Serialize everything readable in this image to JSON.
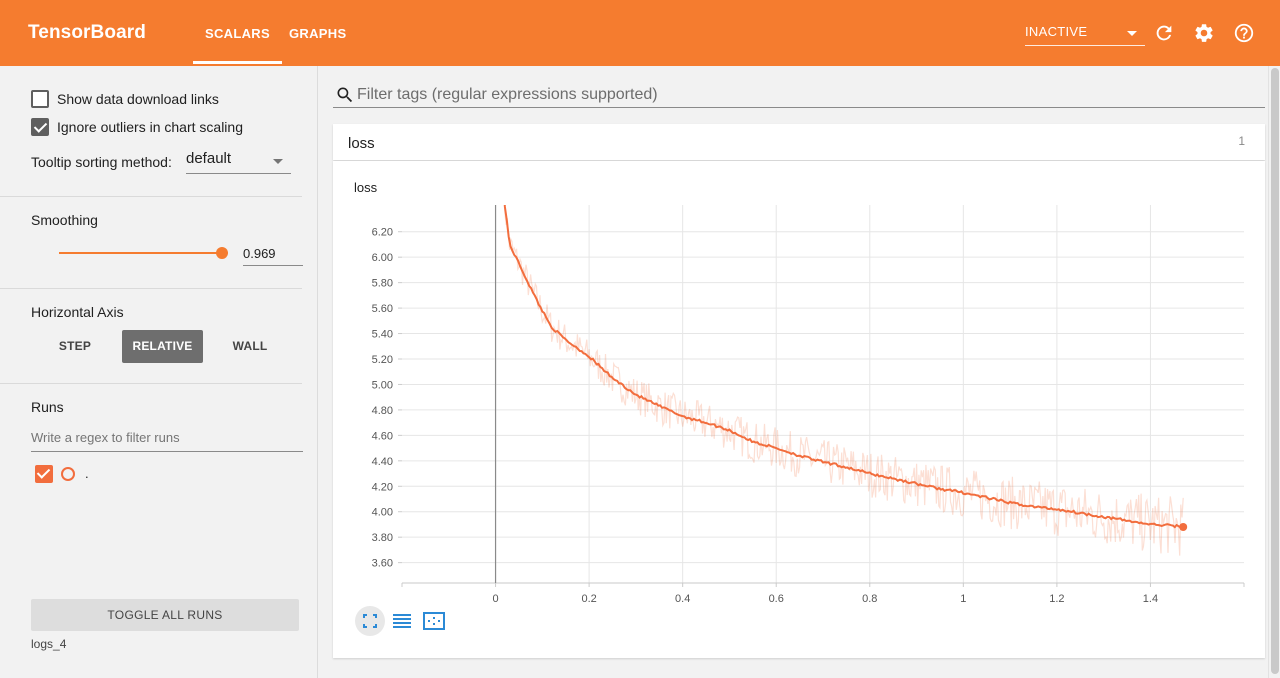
{
  "header": {
    "brand": "TensorBoard",
    "tabs": [
      {
        "label": "SCALARS"
      },
      {
        "label": "GRAPHS"
      }
    ],
    "run_select_value": "INACTIVE",
    "accent_color": "#f57c2f"
  },
  "sidebar": {
    "show_download_links": {
      "label": "Show data download links",
      "checked": false
    },
    "ignore_outliers": {
      "label": "Ignore outliers in chart scaling",
      "checked": true
    },
    "tooltip_sorting": {
      "label": "Tooltip sorting method:",
      "value": "default"
    },
    "smoothing": {
      "label": "Smoothing",
      "value": "0.969",
      "level": 0.969
    },
    "horizontal_axis": {
      "label": "Horizontal Axis",
      "options": [
        "STEP",
        "RELATIVE",
        "WALL"
      ],
      "selected": "RELATIVE"
    },
    "runs": {
      "label": "Runs",
      "filter_placeholder": "Write a regex to filter runs",
      "items": [
        {
          "name": ".",
          "checked": true,
          "color": "#f26d3d"
        }
      ]
    },
    "toggle_all_label": "TOGGLE ALL RUNS",
    "log_dir": "logs_4"
  },
  "main": {
    "tag_filter_placeholder": "Filter tags (regular expressions supported)",
    "category": {
      "name": "loss",
      "count": "1"
    }
  },
  "chart_data": {
    "type": "line",
    "title": "loss",
    "xlabel": "",
    "ylabel": "",
    "x_ticks": [
      "0",
      "0.2",
      "0.4",
      "0.6",
      "0.8",
      "1",
      "1.2",
      "1.4"
    ],
    "y_ticks": [
      "3.60",
      "3.80",
      "4.00",
      "4.20",
      "4.40",
      "4.60",
      "4.80",
      "5.00",
      "5.20",
      "5.40",
      "5.60",
      "5.80",
      "6.00",
      "6.20"
    ],
    "xlim": [
      -0.2,
      1.6
    ],
    "ylim": [
      3.44,
      6.41
    ],
    "grid": true,
    "series": [
      {
        "smoothed": true,
        "color": "#f26d3d",
        "x": [
          0.0,
          0.02,
          0.03,
          0.05,
          0.08,
          0.1,
          0.12,
          0.15,
          0.2,
          0.25,
          0.3,
          0.35,
          0.4,
          0.45,
          0.5,
          0.55,
          0.6,
          0.65,
          0.7,
          0.75,
          0.8,
          0.85,
          0.9,
          0.95,
          1.0,
          1.05,
          1.1,
          1.15,
          1.2,
          1.25,
          1.3,
          1.35,
          1.4,
          1.45,
          1.47
        ],
        "y": [
          7.5,
          6.4,
          6.1,
          5.95,
          5.72,
          5.58,
          5.45,
          5.35,
          5.22,
          5.05,
          4.92,
          4.83,
          4.75,
          4.7,
          4.64,
          4.55,
          4.5,
          4.44,
          4.39,
          4.35,
          4.3,
          4.26,
          4.22,
          4.18,
          4.15,
          4.11,
          4.07,
          4.04,
          4.02,
          3.99,
          3.96,
          3.93,
          3.9,
          3.89,
          3.88
        ]
      }
    ]
  }
}
